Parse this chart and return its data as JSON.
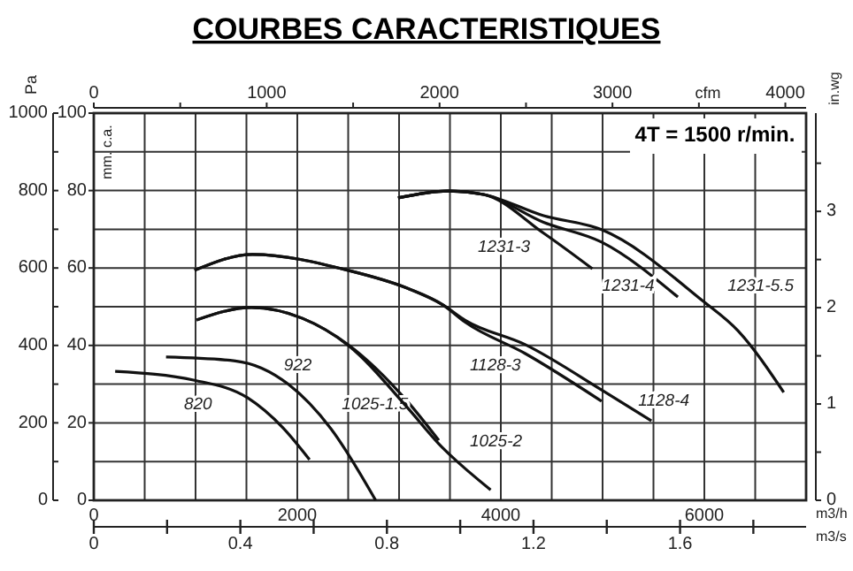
{
  "chart_data": {
    "type": "line",
    "title": "COURBES CARACTERISTIQUES",
    "annotations": [
      "4T = 1500 r/min.",
      "cfm",
      "0",
      "1000",
      "2000",
      "3000",
      "4000"
    ],
    "xlabel": "m3/h",
    "x2label": "m3/s",
    "ylabel": "Pa",
    "y2label": "mm. c.a.",
    "y3label": "in.wg",
    "grid": true,
    "xlim": [
      0,
      7000
    ],
    "xticks": [
      0,
      {
        "value": 500,
        "label": null
      },
      {
        "value": 1000,
        "label": null
      },
      {
        "value": 1500,
        "label": null
      },
      2000,
      {
        "value": 2500,
        "label": null
      },
      {
        "value": 3000,
        "label": null
      },
      {
        "value": 3500,
        "label": null
      },
      4000,
      {
        "value": 4500,
        "label": null
      },
      {
        "value": 5000,
        "label": null
      },
      {
        "value": 5500,
        "label": null
      },
      6000,
      {
        "value": 6500,
        "label": null
      }
    ],
    "x2lim": [
      0,
      1.944
    ],
    "x2ticks": [
      0,
      {
        "value": 0.2,
        "label": null
      },
      0.4,
      {
        "value": 0.6,
        "label": null
      },
      0.8,
      {
        "value": 1.0,
        "label": null
      },
      1.2,
      {
        "value": 1.4,
        "label": null
      },
      1.6,
      {
        "value": 1.8,
        "label": null
      }
    ],
    "ylim": [
      0,
      1000
    ],
    "yticks": [
      0,
      {
        "value": 100,
        "label": null
      },
      200,
      {
        "value": 300,
        "label": null
      },
      400,
      {
        "value": 500,
        "label": null
      },
      600,
      {
        "value": 700,
        "label": null
      },
      800,
      {
        "value": 900,
        "label": null
      },
      1000
    ],
    "y2lim": [
      0,
      100
    ],
    "y2ticks": [
      0,
      20,
      40,
      60,
      80,
      100
    ],
    "y3lim": [
      0,
      4.02
    ],
    "y3ticks": [
      0,
      {
        "value": 0.5,
        "label": null
      },
      1,
      {
        "value": 1.5,
        "label": null
      },
      2,
      {
        "value": 2.5,
        "label": null
      },
      3,
      {
        "value": 3.5,
        "label": null
      }
    ],
    "series": [
      {
        "name": "820",
        "color": "#111111",
        "x": [
          210,
          990,
          1510,
          1860,
          2120
        ],
        "values": [
          333,
          310,
          265,
          187,
          105
        ]
      },
      {
        "name": "922",
        "color": "#111111",
        "x": [
          710,
          1390,
          1910,
          2330,
          2770
        ],
        "values": [
          370,
          360,
          300,
          185,
          0
        ]
      },
      {
        "name": "1025-1.5",
        "color": "#111111",
        "x": [
          1010,
          1550,
          2050,
          2500,
          3080,
          3390
        ],
        "values": [
          466,
          498,
          470,
          402,
          256,
          155
        ]
      },
      {
        "name": "1025-2",
        "color": "#111111",
        "x": [
          1010,
          1550,
          2050,
          2500,
          3080,
          3390,
          3900
        ],
        "values": [
          466,
          498,
          470,
          400,
          240,
          146,
          27
        ]
      },
      {
        "name": "1128-3",
        "color": "#111111",
        "x": [
          990,
          1560,
          2500,
          3080,
          3430,
          3650,
          4240,
          4990
        ],
        "values": [
          594,
          635,
          594,
          548,
          505,
          460,
          379,
          256
        ]
      },
      {
        "name": "1128-4",
        "color": "#111111",
        "x": [
          990,
          1560,
          2500,
          3080,
          3430,
          3650,
          4240,
          4990,
          5480
        ],
        "values": [
          594,
          635,
          594,
          548,
          505,
          465,
          402,
          285,
          205
        ]
      },
      {
        "name": "1231-3",
        "color": "#111111",
        "x": [
          2990,
          3480,
          3830,
          4420,
          4900
        ],
        "values": [
          781,
          799,
          790,
          690,
          598
        ]
      },
      {
        "name": "1231-4",
        "color": "#111111",
        "x": [
          2990,
          3480,
          3830,
          4420,
          4990,
          5740
        ],
        "values": [
          781,
          799,
          790,
          718,
          667,
          525
        ]
      },
      {
        "name": "1231-5.5",
        "color": "#111111",
        "x": [
          2990,
          3480,
          3830,
          4420,
          4990,
          5980,
          6330,
          6780
        ],
        "values": [
          781,
          799,
          790,
          735,
          699,
          516,
          438,
          279
        ]
      }
    ]
  }
}
